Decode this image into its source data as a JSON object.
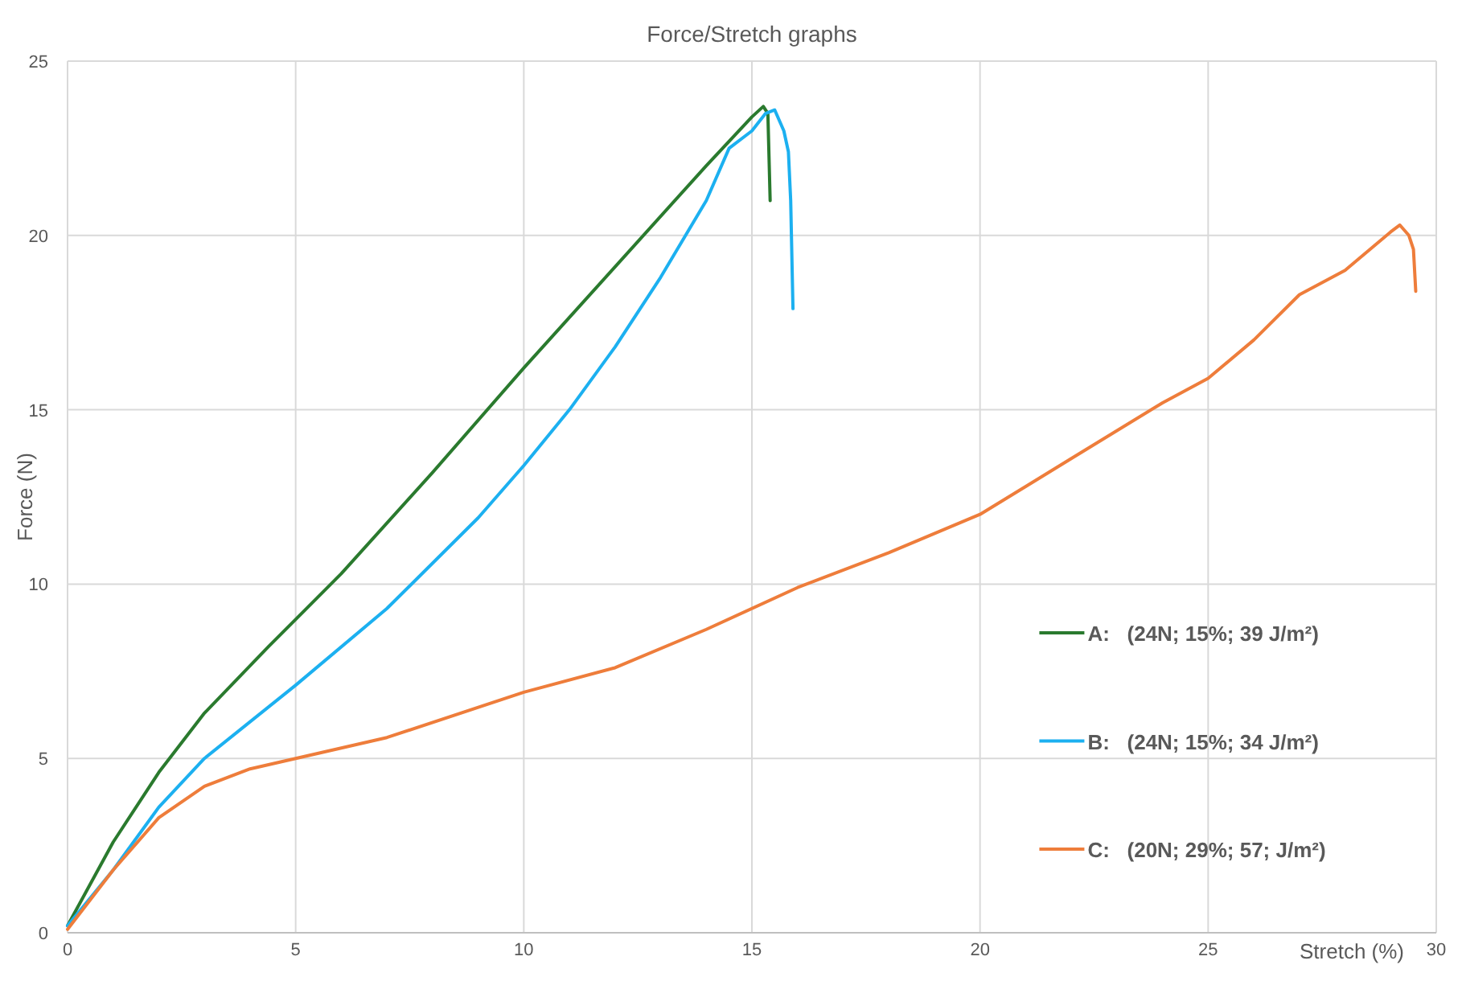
{
  "chart_data": {
    "type": "line",
    "title": "Force/Stretch graphs",
    "xlabel": "Stretch (%)",
    "ylabel": "Force (N)",
    "xlim": [
      0,
      30
    ],
    "xticks": [
      0,
      5,
      10,
      15,
      20,
      25,
      30
    ],
    "ylim": [
      0,
      25
    ],
    "yticks": [
      0,
      5,
      10,
      15,
      20,
      25
    ],
    "grid": true,
    "legend": "right",
    "line_style": "solid",
    "marker": "none",
    "series": [
      {
        "name": "A:   (24N; 15%; 39 J/m²)",
        "color": "#2a7a2e",
        "x": [
          0,
          1,
          2,
          3,
          4.4,
          6,
          8,
          10,
          12,
          14,
          15,
          15.25,
          15.35,
          15.4
        ],
        "values": [
          0.2,
          2.6,
          4.6,
          6.3,
          8.2,
          10.3,
          13.2,
          16.2,
          19.1,
          22,
          23.4,
          23.7,
          23.5,
          21
        ]
      },
      {
        "name": "B:   (24N; 15%; 34 J/m²)",
        "color": "#1cb0f0",
        "x": [
          0,
          1,
          2,
          3,
          5,
          7,
          9,
          10,
          11,
          12,
          13,
          14,
          14.5,
          15,
          15.3,
          15.5,
          15.7,
          15.8,
          15.85,
          15.9
        ],
        "values": [
          0.2,
          1.8,
          3.6,
          5,
          7.1,
          9.3,
          11.9,
          13.4,
          15,
          16.8,
          18.8,
          21,
          22.5,
          23,
          23.5,
          23.6,
          23,
          22.4,
          21,
          17.9
        ]
      },
      {
        "name": "C:   (20N; 29%; 57; J/m²)",
        "color": "#ee7d3b",
        "x": [
          0,
          1,
          2,
          3,
          4,
          5,
          7,
          10,
          12,
          14,
          16,
          18,
          20,
          22,
          24,
          25,
          26,
          27,
          28,
          29,
          29.2,
          29.4,
          29.5,
          29.55
        ],
        "values": [
          0.1,
          1.8,
          3.3,
          4.2,
          4.7,
          5,
          5.6,
          6.9,
          7.6,
          8.7,
          9.9,
          10.9,
          12,
          13.6,
          15.2,
          15.9,
          17,
          18.3,
          19,
          20.1,
          20.3,
          20,
          19.6,
          18.4
        ]
      }
    ]
  }
}
